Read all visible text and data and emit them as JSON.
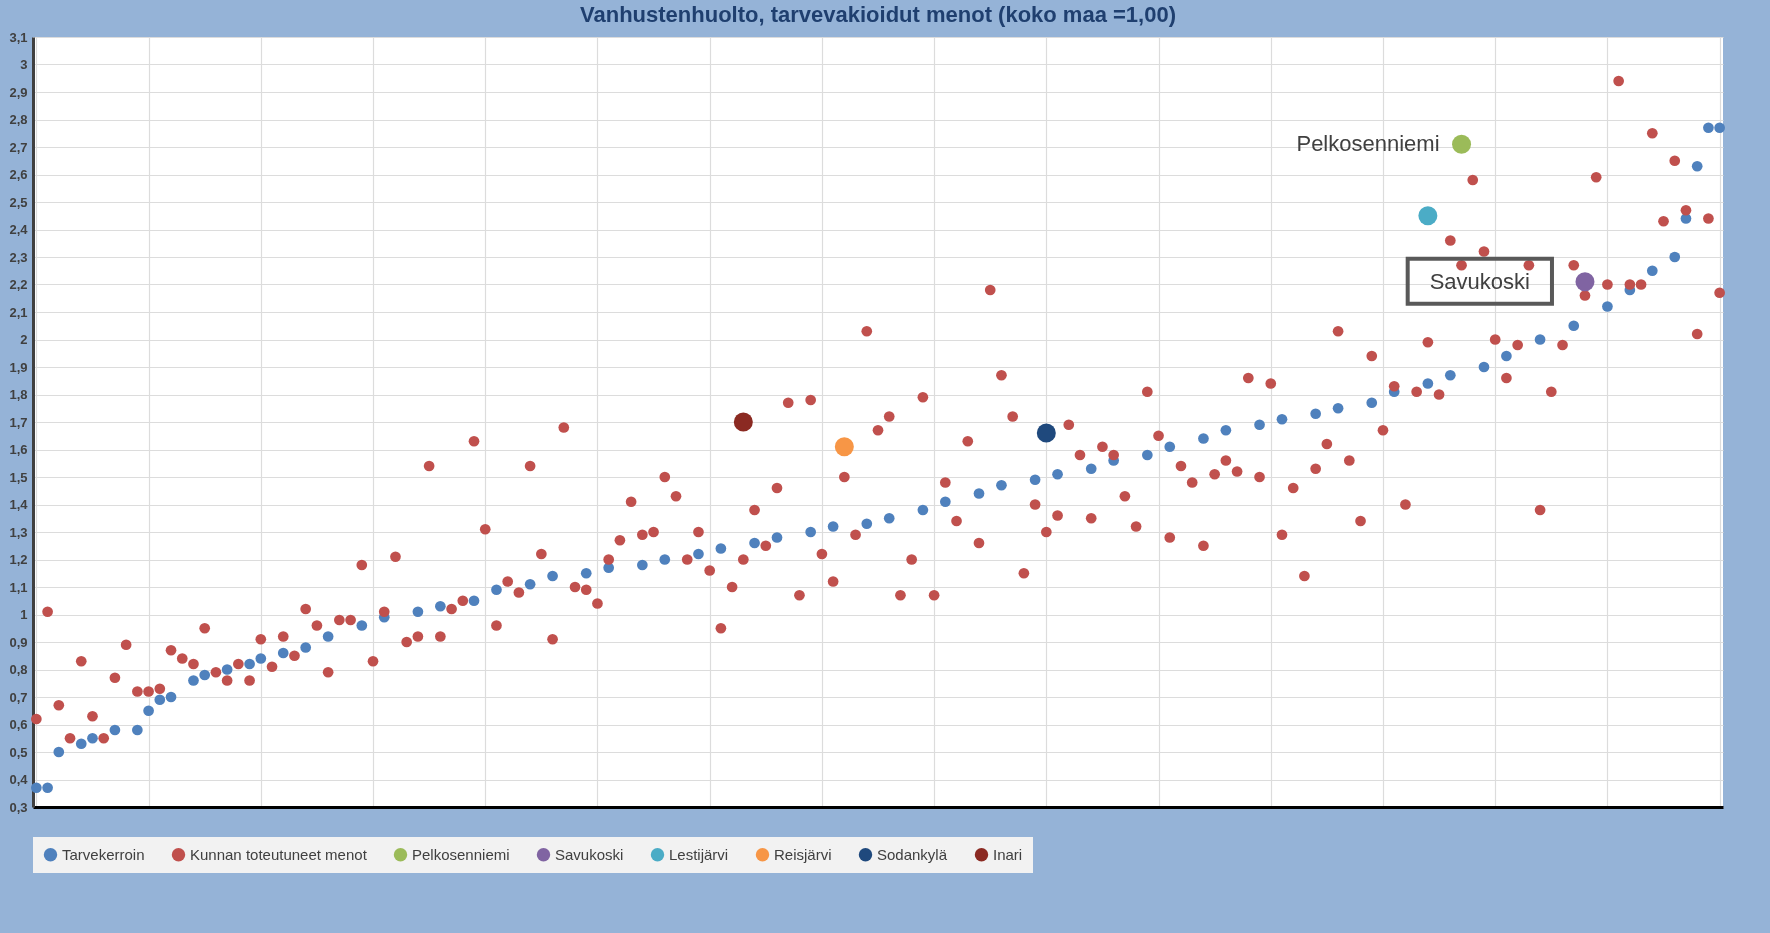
{
  "chart_data": {
    "type": "scatter",
    "title": "Vanhustenhuolto, tarvevakioidut menot (koko maa =1,00)",
    "categories": [
      null,
      null,
      null,
      null,
      null,
      null,
      null,
      null,
      null,
      null,
      null,
      null,
      null,
      null,
      null,
      null,
      null,
      null,
      null,
      null,
      null,
      null,
      null,
      null,
      null,
      null,
      null,
      null,
      null,
      null,
      null,
      null,
      null,
      null,
      null,
      null,
      null,
      null,
      null,
      null,
      null,
      null,
      null,
      null,
      null,
      null,
      null,
      null,
      null,
      null,
      null,
      null,
      null,
      null,
      null,
      null,
      null,
      null,
      null,
      null,
      null,
      null,
      null,
      null,
      null,
      null,
      null,
      null,
      null,
      null,
      null,
      null,
      null,
      null,
      null,
      null,
      null,
      null,
      null,
      null,
      null,
      null,
      null,
      null,
      null,
      null,
      null,
      null,
      null,
      null,
      null,
      null,
      null,
      null,
      null,
      null,
      null,
      null,
      null,
      null,
      null,
      null,
      null,
      null,
      null,
      null,
      null,
      null,
      null,
      null,
      null,
      null,
      null,
      null,
      null,
      null,
      null,
      null,
      null,
      null,
      null,
      null,
      null,
      null,
      null,
      null,
      null,
      null,
      null,
      null,
      null,
      null,
      null,
      null,
      null,
      null,
      null,
      null,
      null,
      null,
      null,
      null,
      null,
      null,
      null,
      null,
      null,
      null,
      null,
      null,
      null
    ],
    "ylim": [
      0.3,
      3.1
    ],
    "yticks": [
      {
        "value": 0.3,
        "label": "0,3"
      },
      {
        "value": 0.4,
        "label": "0,4"
      },
      {
        "value": 0.5,
        "label": "0,5"
      },
      {
        "value": 0.6,
        "label": "0,6"
      },
      {
        "value": 0.7,
        "label": "0,7"
      },
      {
        "value": 0.8,
        "label": "0,8"
      },
      {
        "value": 0.9,
        "label": "0,9"
      },
      1,
      {
        "value": 1.1,
        "label": "1,1"
      },
      {
        "value": 1.2,
        "label": "1,2"
      },
      {
        "value": 1.3,
        "label": "1,3"
      },
      {
        "value": 1.4,
        "label": "1,4"
      },
      {
        "value": 1.5,
        "label": "1,5"
      },
      {
        "value": 1.6,
        "label": "1,6"
      },
      {
        "value": 1.7,
        "label": "1,7"
      },
      {
        "value": 1.8,
        "label": "1,8"
      },
      {
        "value": 1.9,
        "label": "1,9"
      },
      2,
      {
        "value": 2.1,
        "label": "2,1"
      },
      {
        "value": 2.2,
        "label": "2,2"
      },
      {
        "value": 2.3,
        "label": "2,3"
      },
      {
        "value": 2.4,
        "label": "2,4"
      },
      {
        "value": 2.5,
        "label": "2,5"
      },
      {
        "value": 2.6,
        "label": "2,6"
      },
      {
        "value": 2.7,
        "label": "2,7"
      },
      {
        "value": 2.8,
        "label": "2,8"
      },
      {
        "value": 2.9,
        "label": "2,9"
      },
      3,
      {
        "value": 3.1,
        "label": "3,1"
      }
    ],
    "tick_labels": "y",
    "grid": true,
    "legend": "bottom",
    "marker": "circle",
    "series": [
      {
        "name": "Tarvekerroin",
        "color": "#4f81bd",
        "values": [
          0.37,
          0.37,
          0.5,
          null,
          0.53,
          0.55,
          null,
          0.58,
          null,
          0.58,
          0.65,
          0.69,
          0.7,
          null,
          0.76,
          0.78,
          null,
          0.8,
          null,
          0.82,
          0.84,
          null,
          0.86,
          null,
          0.88,
          null,
          0.92,
          null,
          null,
          0.96,
          null,
          0.99,
          null,
          null,
          1.01,
          null,
          1.03,
          null,
          null,
          1.05,
          null,
          1.09,
          null,
          null,
          1.11,
          null,
          1.14,
          null,
          null,
          1.15,
          null,
          1.17,
          null,
          null,
          1.18,
          null,
          1.2,
          null,
          null,
          1.22,
          null,
          1.24,
          null,
          null,
          1.26,
          null,
          1.28,
          null,
          null,
          1.3,
          null,
          1.32,
          null,
          null,
          1.33,
          null,
          1.35,
          null,
          null,
          1.38,
          null,
          1.41,
          null,
          null,
          1.44,
          null,
          1.47,
          null,
          null,
          1.49,
          null,
          1.51,
          null,
          null,
          1.53,
          null,
          1.56,
          null,
          null,
          1.58,
          null,
          1.61,
          null,
          null,
          1.64,
          null,
          1.67,
          null,
          null,
          1.69,
          null,
          1.71,
          null,
          null,
          1.73,
          null,
          1.75,
          null,
          null,
          1.77,
          null,
          1.81,
          null,
          null,
          1.84,
          null,
          1.87,
          null,
          null,
          1.9,
          null,
          1.94,
          null,
          null,
          2.0,
          null,
          null,
          2.05,
          null,
          null,
          2.12,
          null,
          2.18,
          null,
          2.25,
          null,
          2.3,
          2.44,
          2.63,
          2.77,
          2.77
        ]
      },
      {
        "name": "Kunnan toteutuneet menot",
        "color": "#c0504d",
        "values": [
          0.62,
          1.01,
          0.67,
          0.55,
          0.83,
          0.63,
          0.55,
          0.77,
          0.89,
          0.72,
          0.72,
          0.73,
          0.87,
          0.84,
          0.82,
          0.95,
          0.79,
          0.76,
          0.82,
          0.76,
          0.91,
          0.81,
          0.92,
          0.85,
          1.02,
          0.96,
          0.79,
          0.98,
          0.98,
          1.18,
          0.83,
          1.01,
          1.21,
          0.9,
          0.92,
          1.54,
          0.92,
          1.02,
          1.05,
          1.63,
          1.31,
          0.96,
          1.12,
          1.08,
          1.54,
          1.22,
          0.91,
          1.68,
          1.1,
          1.09,
          1.04,
          1.2,
          1.27,
          1.41,
          1.29,
          1.3,
          1.5,
          1.43,
          1.2,
          1.3,
          1.16,
          0.95,
          1.1,
          1.2,
          1.38,
          1.25,
          1.46,
          1.77,
          1.07,
          1.78,
          1.22,
          1.12,
          1.5,
          1.29,
          2.03,
          1.67,
          1.72,
          1.07,
          1.2,
          1.79,
          1.07,
          1.48,
          1.34,
          1.63,
          1.26,
          2.18,
          1.87,
          1.72,
          1.15,
          1.4,
          1.3,
          1.36,
          1.69,
          1.58,
          1.35,
          1.61,
          1.58,
          1.43,
          1.32,
          1.81,
          1.65,
          1.28,
          1.54,
          1.48,
          1.25,
          1.51,
          1.56,
          1.52,
          1.86,
          1.5,
          1.84,
          1.29,
          1.46,
          1.14,
          1.53,
          1.62,
          2.03,
          1.56,
          1.34,
          1.94,
          1.67,
          1.83,
          1.4,
          1.81,
          1.99,
          1.8,
          2.36,
          2.27,
          2.58,
          2.32,
          2.0,
          1.86,
          1.98,
          2.27,
          1.38,
          1.81,
          1.98,
          2.27,
          2.16,
          2.59,
          2.2,
          2.94,
          2.2,
          2.2,
          2.75,
          2.43,
          2.65,
          2.47,
          2.02,
          2.44,
          2.17
        ]
      },
      {
        "name": "Pelkosenniemi",
        "color": "#9bbb59",
        "values": [
          null,
          null,
          null,
          null,
          null,
          null,
          null,
          null,
          null,
          null,
          null,
          null,
          null,
          null,
          null,
          null,
          null,
          null,
          null,
          null,
          null,
          null,
          null,
          null,
          null,
          null,
          null,
          null,
          null,
          null,
          null,
          null,
          null,
          null,
          null,
          null,
          null,
          null,
          null,
          null,
          null,
          null,
          null,
          null,
          null,
          null,
          null,
          null,
          null,
          null,
          null,
          null,
          null,
          null,
          null,
          null,
          null,
          null,
          null,
          null,
          null,
          null,
          null,
          null,
          null,
          null,
          null,
          null,
          null,
          null,
          null,
          null,
          null,
          null,
          null,
          null,
          null,
          null,
          null,
          null,
          null,
          null,
          null,
          null,
          null,
          null,
          null,
          null,
          null,
          null,
          null,
          null,
          null,
          null,
          null,
          null,
          null,
          null,
          null,
          null,
          null,
          null,
          null,
          null,
          null,
          null,
          null,
          null,
          null,
          null,
          null,
          null,
          null,
          null,
          null,
          null,
          null,
          null,
          null,
          null,
          null,
          null,
          null,
          null,
          null,
          null,
          null,
          2.71,
          null,
          null,
          null,
          null,
          null,
          null,
          null,
          null,
          null,
          null,
          null,
          null,
          null,
          null,
          null,
          null,
          null,
          null,
          null,
          null,
          null,
          null,
          null
        ]
      },
      {
        "name": "Savukoski",
        "color": "#8064a2",
        "values": [
          null,
          null,
          null,
          null,
          null,
          null,
          null,
          null,
          null,
          null,
          null,
          null,
          null,
          null,
          null,
          null,
          null,
          null,
          null,
          null,
          null,
          null,
          null,
          null,
          null,
          null,
          null,
          null,
          null,
          null,
          null,
          null,
          null,
          null,
          null,
          null,
          null,
          null,
          null,
          null,
          null,
          null,
          null,
          null,
          null,
          null,
          null,
          null,
          null,
          null,
          null,
          null,
          null,
          null,
          null,
          null,
          null,
          null,
          null,
          null,
          null,
          null,
          null,
          null,
          null,
          null,
          null,
          null,
          null,
          null,
          null,
          null,
          null,
          null,
          null,
          null,
          null,
          null,
          null,
          null,
          null,
          null,
          null,
          null,
          null,
          null,
          null,
          null,
          null,
          null,
          null,
          null,
          null,
          null,
          null,
          null,
          null,
          null,
          null,
          null,
          null,
          null,
          null,
          null,
          null,
          null,
          null,
          null,
          null,
          null,
          null,
          null,
          null,
          null,
          null,
          null,
          null,
          null,
          null,
          null,
          null,
          null,
          null,
          null,
          null,
          null,
          null,
          null,
          null,
          null,
          null,
          null,
          null,
          null,
          null,
          null,
          null,
          null,
          2.21,
          null,
          null,
          null,
          null,
          null,
          null,
          null,
          null,
          null,
          null,
          null,
          null
        ]
      },
      {
        "name": "Lestijärvi",
        "color": "#4bacc6",
        "values": [
          null,
          null,
          null,
          null,
          null,
          null,
          null,
          null,
          null,
          null,
          null,
          null,
          null,
          null,
          null,
          null,
          null,
          null,
          null,
          null,
          null,
          null,
          null,
          null,
          null,
          null,
          null,
          null,
          null,
          null,
          null,
          null,
          null,
          null,
          null,
          null,
          null,
          null,
          null,
          null,
          null,
          null,
          null,
          null,
          null,
          null,
          null,
          null,
          null,
          null,
          null,
          null,
          null,
          null,
          null,
          null,
          null,
          null,
          null,
          null,
          null,
          null,
          null,
          null,
          null,
          null,
          null,
          null,
          null,
          null,
          null,
          null,
          null,
          null,
          null,
          null,
          null,
          null,
          null,
          null,
          null,
          null,
          null,
          null,
          null,
          null,
          null,
          null,
          null,
          null,
          null,
          null,
          null,
          null,
          null,
          null,
          null,
          null,
          null,
          null,
          null,
          null,
          null,
          null,
          null,
          null,
          null,
          null,
          null,
          null,
          null,
          null,
          null,
          null,
          null,
          null,
          null,
          null,
          null,
          null,
          null,
          null,
          null,
          null,
          2.45,
          null,
          null,
          null,
          null,
          null,
          null,
          null,
          null,
          null,
          null,
          null,
          null,
          null,
          null,
          null,
          null,
          null,
          null,
          null,
          null,
          null,
          null,
          null,
          null,
          null,
          null
        ]
      },
      {
        "name": "Reisjärvi",
        "color": "#f79646",
        "values": [
          null,
          null,
          null,
          null,
          null,
          null,
          null,
          null,
          null,
          null,
          null,
          null,
          null,
          null,
          null,
          null,
          null,
          null,
          null,
          null,
          null,
          null,
          null,
          null,
          null,
          null,
          null,
          null,
          null,
          null,
          null,
          null,
          null,
          null,
          null,
          null,
          null,
          null,
          null,
          null,
          null,
          null,
          null,
          null,
          null,
          null,
          null,
          null,
          null,
          null,
          null,
          null,
          null,
          null,
          null,
          null,
          null,
          null,
          null,
          null,
          null,
          null,
          null,
          null,
          null,
          null,
          null,
          null,
          null,
          null,
          null,
          null,
          1.61,
          null,
          null,
          null,
          null,
          null,
          null,
          null,
          null,
          null,
          null,
          null,
          null,
          null,
          null,
          null,
          null,
          null,
          null,
          null,
          null,
          null,
          null,
          null,
          null,
          null,
          null,
          null,
          null,
          null,
          null,
          null,
          null,
          null,
          null,
          null,
          null,
          null,
          null,
          null,
          null,
          null,
          null,
          null,
          null,
          null,
          null,
          null,
          null,
          null,
          null,
          null,
          null,
          null,
          null,
          null,
          null,
          null,
          null,
          null,
          null,
          null,
          null,
          null,
          null,
          null,
          null,
          null,
          null,
          null,
          null,
          null,
          null,
          null,
          null,
          null,
          null,
          null,
          null
        ]
      },
      {
        "name": "Sodankylä",
        "color": "#1f497d",
        "values": [
          null,
          null,
          null,
          null,
          null,
          null,
          null,
          null,
          null,
          null,
          null,
          null,
          null,
          null,
          null,
          null,
          null,
          null,
          null,
          null,
          null,
          null,
          null,
          null,
          null,
          null,
          null,
          null,
          null,
          null,
          null,
          null,
          null,
          null,
          null,
          null,
          null,
          null,
          null,
          null,
          null,
          null,
          null,
          null,
          null,
          null,
          null,
          null,
          null,
          null,
          null,
          null,
          null,
          null,
          null,
          null,
          null,
          null,
          null,
          null,
          null,
          null,
          null,
          null,
          null,
          null,
          null,
          null,
          null,
          null,
          null,
          null,
          null,
          null,
          null,
          null,
          null,
          null,
          null,
          null,
          null,
          null,
          null,
          null,
          null,
          null,
          null,
          null,
          null,
          null,
          1.66,
          null,
          null,
          null,
          null,
          null,
          null,
          null,
          null,
          null,
          null,
          null,
          null,
          null,
          null,
          null,
          null,
          null,
          null,
          null,
          null,
          null,
          null,
          null,
          null,
          null,
          null,
          null,
          null,
          null,
          null,
          null,
          null,
          null,
          null,
          null,
          null,
          null,
          null,
          null,
          null,
          null,
          null,
          null,
          null,
          null,
          null,
          null,
          null,
          null,
          null,
          null,
          null,
          null,
          null,
          null,
          null,
          null,
          null,
          null,
          null
        ]
      },
      {
        "name": "Inari",
        "color": "#8b2a22",
        "values": [
          null,
          null,
          null,
          null,
          null,
          null,
          null,
          null,
          null,
          null,
          null,
          null,
          null,
          null,
          null,
          null,
          null,
          null,
          null,
          null,
          null,
          null,
          null,
          null,
          null,
          null,
          null,
          null,
          null,
          null,
          null,
          null,
          null,
          null,
          null,
          null,
          null,
          null,
          null,
          null,
          null,
          null,
          null,
          null,
          null,
          null,
          null,
          null,
          null,
          null,
          null,
          null,
          null,
          null,
          null,
          null,
          null,
          null,
          null,
          null,
          null,
          null,
          null,
          1.7,
          null,
          null,
          null,
          null,
          null,
          null,
          null,
          null,
          null,
          null,
          null,
          null,
          null,
          null,
          null,
          null,
          null,
          null,
          null,
          null,
          null,
          null,
          null,
          null,
          null,
          null,
          null,
          null,
          null,
          null,
          null,
          null,
          null,
          null,
          null,
          null,
          null,
          null,
          null,
          null,
          null,
          null,
          null,
          null,
          null,
          null,
          null,
          null,
          null,
          null,
          null,
          null,
          null,
          null,
          null,
          null,
          null,
          null,
          null,
          null,
          null,
          null,
          null,
          null,
          null,
          null,
          null,
          null,
          null,
          null,
          null,
          null,
          null,
          null,
          null,
          null,
          null,
          null,
          null,
          null,
          null,
          null,
          null,
          null,
          null,
          null,
          null
        ]
      }
    ],
    "annotations": [
      "Pelkosenniemi",
      "Savukoski"
    ]
  }
}
